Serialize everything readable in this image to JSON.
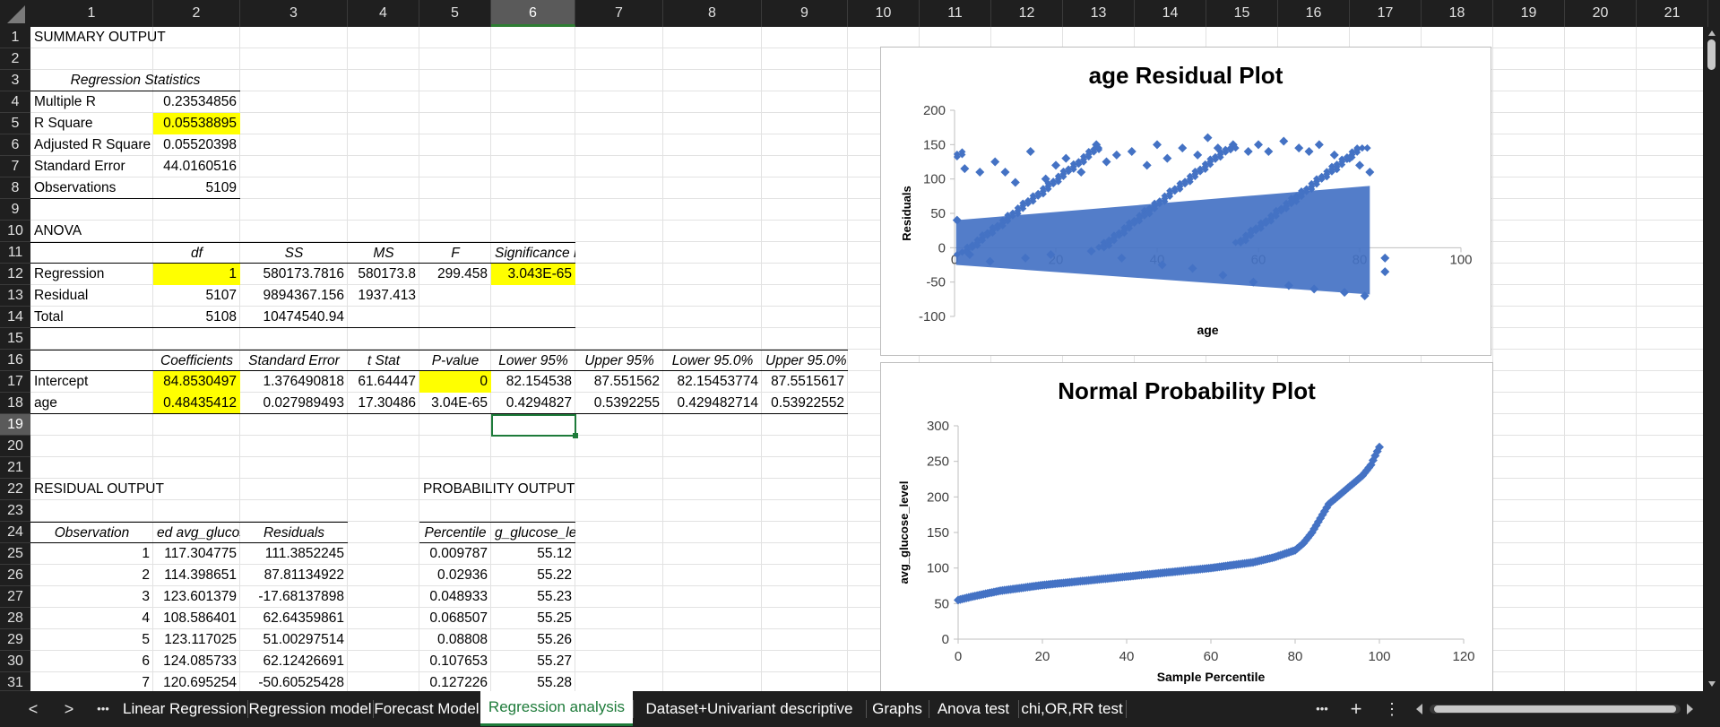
{
  "columns": [
    "1",
    "2",
    "3",
    "4",
    "5",
    "6",
    "7",
    "8",
    "9",
    "10",
    "11",
    "12",
    "13",
    "14",
    "15",
    "16",
    "17",
    "18",
    "19",
    "20",
    "21"
  ],
  "selected_column": "6",
  "rows": [
    "1",
    "2",
    "3",
    "4",
    "5",
    "6",
    "7",
    "8",
    "9",
    "10",
    "11",
    "12",
    "13",
    "14",
    "15",
    "16",
    "17",
    "18",
    "19",
    "20",
    "21",
    "22",
    "23",
    "24",
    "25",
    "26",
    "27",
    "28",
    "29",
    "30",
    "31"
  ],
  "selected_row": "19",
  "summary": {
    "title": "SUMMARY OUTPUT",
    "reg_stats_header": "Regression Statistics",
    "multiple_r_label": "Multiple R",
    "multiple_r": "0.23534856",
    "r_square_label": "R Square",
    "r_square": "0.05538895",
    "adj_r_square_label": "Adjusted R Square",
    "adj_r_square": "0.05520398",
    "std_error_label": "Standard Error",
    "std_error": "44.0160516",
    "observations_label": "Observations",
    "observations": "5109"
  },
  "anova": {
    "title": "ANOVA",
    "headers": [
      "df",
      "SS",
      "MS",
      "F",
      "Significance F"
    ],
    "regression": [
      "Regression",
      "1",
      "580173.7816",
      "580173.8",
      "299.458",
      "3.043E-65"
    ],
    "residual": [
      "Residual",
      "5107",
      "9894367.156",
      "1937.413"
    ],
    "total": [
      "Total",
      "5108",
      "10474540.94"
    ]
  },
  "coefficients": {
    "headers": [
      "Coefficients",
      "Standard Error",
      "t Stat",
      "P-value",
      "Lower 95%",
      "Upper 95%",
      "Lower 95.0%",
      "Upper 95.0%"
    ],
    "intercept": [
      "Intercept",
      "84.8530497",
      "1.376490818",
      "61.64447",
      "0",
      "82.154538",
      "87.551562",
      "82.15453774",
      "87.5515617"
    ],
    "age": [
      "age",
      "0.48435412",
      "0.027989493",
      "17.30486",
      "3.04E-65",
      "0.4294827",
      "0.5392255",
      "0.429482714",
      "0.53922552"
    ]
  },
  "residual_output": {
    "title": "RESIDUAL OUTPUT",
    "headers": [
      "Observation",
      "ed avg_glucos",
      "Residuals"
    ],
    "rows": [
      [
        "1",
        "117.304775",
        "111.3852245"
      ],
      [
        "2",
        "114.398651",
        "87.81134922"
      ],
      [
        "3",
        "123.601379",
        "-17.68137898"
      ],
      [
        "4",
        "108.586401",
        "62.64359861"
      ],
      [
        "5",
        "123.117025",
        "51.00297514"
      ],
      [
        "6",
        "124.085733",
        "62.12426691"
      ],
      [
        "7",
        "120.695254",
        "-50.60525428"
      ]
    ]
  },
  "probability_output": {
    "title": "PROBABILITY OUTPUT",
    "headers": [
      "Percentile",
      "g_glucose_level"
    ],
    "rows": [
      [
        "0.009787",
        "55.12"
      ],
      [
        "0.02936",
        "55.22"
      ],
      [
        "0.048933",
        "55.23"
      ],
      [
        "0.068507",
        "55.25"
      ],
      [
        "0.08808",
        "55.26"
      ],
      [
        "0.107653",
        "55.27"
      ],
      [
        "0.127226",
        "55.28"
      ]
    ]
  },
  "chart_data": [
    {
      "type": "scatter",
      "title": "age  Residual Plot",
      "xlabel": "age",
      "ylabel": "Residuals",
      "xlim": [
        0,
        100
      ],
      "ylim": [
        -100,
        200
      ],
      "xticks": [
        "0",
        "20",
        "40",
        "60",
        "80",
        "100"
      ],
      "yticks": [
        "200",
        "150",
        "100",
        "50",
        "0",
        "-50",
        "-100"
      ],
      "color": "#4472c4",
      "x": [
        0.5,
        2,
        5,
        8,
        10,
        12,
        15,
        18,
        20,
        22,
        25,
        28,
        30,
        32,
        35,
        38,
        40,
        42,
        45,
        48,
        50,
        52,
        55,
        58,
        60,
        62,
        65,
        68,
        70,
        72,
        75,
        78,
        80,
        82,
        85,
        85,
        3,
        7,
        14,
        19,
        27,
        33,
        41,
        47,
        53,
        59,
        66,
        71,
        77,
        81
      ],
      "y": [
        40,
        115,
        110,
        125,
        110,
        95,
        140,
        100,
        120,
        130,
        110,
        150,
        125,
        135,
        140,
        120,
        150,
        130,
        145,
        135,
        160,
        145,
        150,
        140,
        150,
        140,
        155,
        145,
        140,
        150,
        135,
        130,
        120,
        110,
        -15,
        -35,
        -10,
        -20,
        -15,
        -10,
        -5,
        -15,
        -25,
        -30,
        -40,
        -50,
        -55,
        -60,
        -65,
        -70
      ]
    },
    {
      "type": "scatter",
      "title": "Normal Probability Plot",
      "xlabel": "Sample Percentile",
      "ylabel": "avg_glucose_level",
      "xlim": [
        0,
        120
      ],
      "ylim": [
        0,
        300
      ],
      "xticks": [
        "0",
        "20",
        "40",
        "60",
        "80",
        "100",
        "120"
      ],
      "yticks": [
        "300",
        "250",
        "200",
        "150",
        "100",
        "50",
        "0"
      ],
      "color": "#4472c4",
      "x": [
        0,
        2,
        5,
        10,
        15,
        20,
        30,
        40,
        50,
        60,
        70,
        75,
        80,
        82,
        84,
        86,
        88,
        90,
        92,
        94,
        96,
        98,
        99,
        100
      ],
      "y": [
        55,
        58,
        62,
        68,
        72,
        76,
        82,
        88,
        94,
        100,
        108,
        115,
        125,
        135,
        150,
        170,
        190,
        200,
        210,
        220,
        230,
        245,
        258,
        270
      ]
    }
  ],
  "sheet_tabs": [
    "Linear Regression",
    "Regression model",
    "Forecast Model",
    "Regression analysis",
    "Dataset+Univariant descriptive",
    "Graphs",
    "Anova test",
    "chi,OR,RR test"
  ],
  "active_tab": "Regression analysis",
  "nav": {
    "prev": "<",
    "next": ">",
    "more": "•••",
    "add": "+",
    "menu": "⋮"
  }
}
